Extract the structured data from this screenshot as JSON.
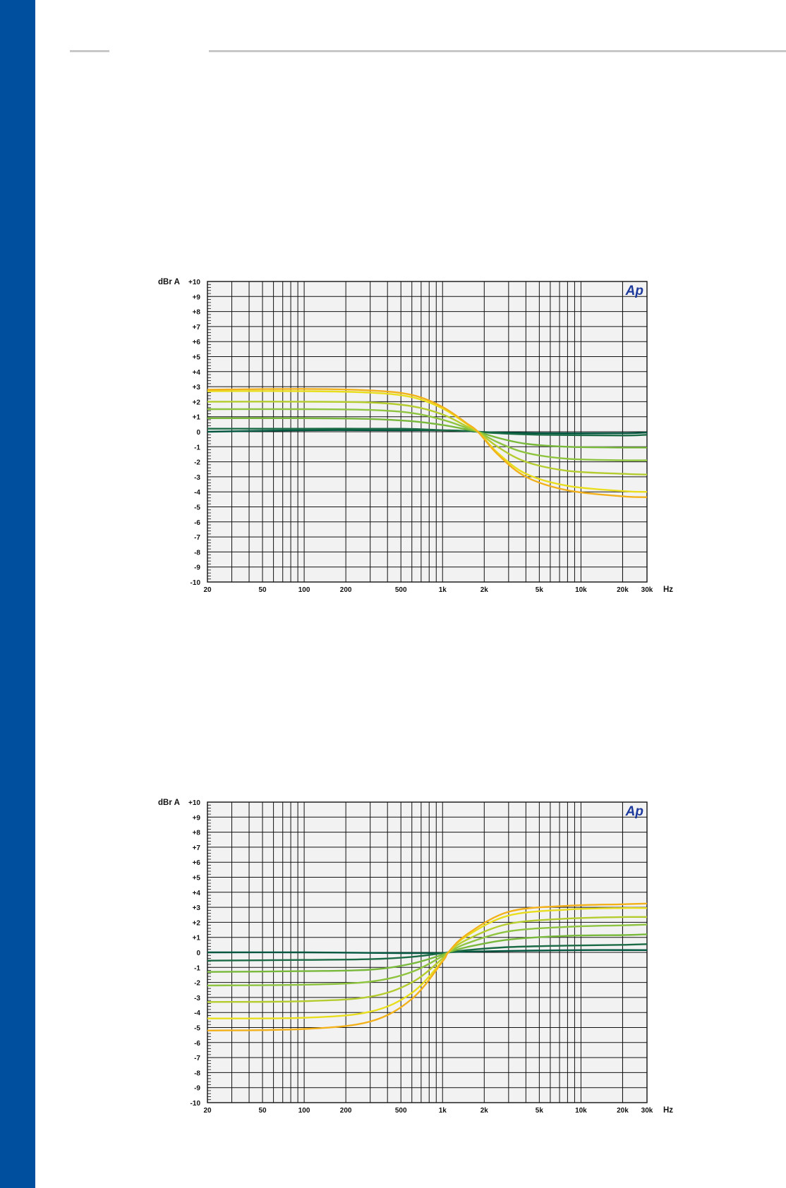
{
  "page": {
    "accent_color": "#004f9e",
    "rule_color": "#c8c8c8"
  },
  "chart_data": [
    {
      "type": "line",
      "ylabel": "dBr A",
      "xlabel": "Hz",
      "logo": "Ap",
      "x_scale": "log",
      "xlim": [
        20,
        30000
      ],
      "ylim": [
        -10,
        10
      ],
      "grid": true,
      "x_ticks": [
        20,
        50,
        100,
        200,
        500,
        1000,
        2000,
        5000,
        10000,
        20000,
        30000
      ],
      "x_tick_labels": [
        "20",
        "50",
        "100",
        "200",
        "500",
        "1k",
        "2k",
        "5k",
        "10k",
        "20k",
        "30k"
      ],
      "y_ticks": [
        10,
        9,
        8,
        7,
        6,
        5,
        4,
        3,
        2,
        1,
        0,
        -1,
        -2,
        -3,
        -4,
        -5,
        -6,
        -7,
        -8,
        -9,
        -10
      ],
      "y_tick_labels": [
        "+10",
        "+9",
        "+8",
        "+7",
        "+6",
        "+5",
        "+4",
        "+3",
        "+2",
        "+1",
        "0",
        "-1",
        "-2",
        "-3",
        "-4",
        "-5",
        "-6",
        "-7",
        "-8",
        "-9",
        "-10"
      ],
      "series": [
        {
          "color": "#00563f",
          "x": [
            20,
            100,
            500,
            1000,
            1500,
            1800,
            2500,
            5000,
            20000,
            30000
          ],
          "y": [
            0.0,
            0.1,
            0.1,
            0.1,
            0.05,
            0.0,
            -0.05,
            -0.1,
            -0.1,
            -0.05
          ]
        },
        {
          "color": "#1a6b45",
          "x": [
            20,
            100,
            500,
            1000,
            1500,
            1800,
            2500,
            5000,
            20000,
            30000
          ],
          "y": [
            0.2,
            0.2,
            0.2,
            0.1,
            0.05,
            0.0,
            -0.1,
            -0.2,
            -0.25,
            -0.2
          ]
        },
        {
          "color": "#78b83a",
          "x": [
            20,
            100,
            300,
            600,
            1000,
            1500,
            1800,
            2500,
            4000,
            8000,
            20000,
            30000
          ],
          "y": [
            0.9,
            0.9,
            0.85,
            0.7,
            0.45,
            0.15,
            0.0,
            -0.4,
            -0.8,
            -1.0,
            -1.05,
            -1.05
          ]
        },
        {
          "color": "#8ec43f",
          "x": [
            20,
            100,
            300,
            600,
            1000,
            1500,
            1800,
            2500,
            4000,
            8000,
            20000,
            30000
          ],
          "y": [
            1.5,
            1.5,
            1.45,
            1.25,
            0.8,
            0.25,
            0.0,
            -0.7,
            -1.4,
            -1.8,
            -1.9,
            -1.9
          ]
        },
        {
          "color": "#b5cc2e",
          "x": [
            20,
            100,
            300,
            600,
            1000,
            1500,
            1800,
            2500,
            4000,
            8000,
            20000,
            30000
          ],
          "y": [
            2.0,
            2.0,
            1.95,
            1.7,
            1.15,
            0.35,
            0.0,
            -1.0,
            -2.0,
            -2.6,
            -2.8,
            -2.85
          ]
        },
        {
          "color": "#e8de1e",
          "x": [
            20,
            100,
            300,
            600,
            1000,
            1500,
            1800,
            2500,
            4000,
            8000,
            20000,
            30000
          ],
          "y": [
            2.7,
            2.7,
            2.6,
            2.3,
            1.55,
            0.5,
            0.0,
            -1.4,
            -2.8,
            -3.6,
            -3.95,
            -4.0
          ]
        },
        {
          "color": "#f2b11a",
          "x": [
            20,
            100,
            300,
            600,
            1000,
            1500,
            1800,
            2500,
            4000,
            8000,
            20000,
            30000
          ],
          "y": [
            2.8,
            2.85,
            2.75,
            2.45,
            1.65,
            0.55,
            0.0,
            -1.5,
            -3.0,
            -3.9,
            -4.3,
            -4.35
          ]
        }
      ]
    },
    {
      "type": "line",
      "ylabel": "dBr A",
      "xlabel": "Hz",
      "logo": "Ap",
      "x_scale": "log",
      "xlim": [
        20,
        30000
      ],
      "ylim": [
        -10,
        10
      ],
      "grid": true,
      "x_ticks": [
        20,
        50,
        100,
        200,
        500,
        1000,
        2000,
        5000,
        10000,
        20000,
        30000
      ],
      "x_tick_labels": [
        "20",
        "50",
        "100",
        "200",
        "500",
        "1k",
        "2k",
        "5k",
        "10k",
        "20k",
        "30k"
      ],
      "y_ticks": [
        10,
        9,
        8,
        7,
        6,
        5,
        4,
        3,
        2,
        1,
        0,
        -1,
        -2,
        -3,
        -4,
        -5,
        -6,
        -7,
        -8,
        -9,
        -10
      ],
      "y_tick_labels": [
        "+10",
        "+9",
        "+8",
        "+7",
        "+6",
        "+5",
        "+4",
        "+3",
        "+2",
        "+1",
        "0",
        "-1",
        "-2",
        "-3",
        "-4",
        "-5",
        "-6",
        "-7",
        "-8",
        "-9",
        "-10"
      ],
      "series": [
        {
          "color": "#00563f",
          "x": [
            20,
            100,
            500,
            1000,
            1100,
            1500,
            3000,
            10000,
            30000
          ],
          "y": [
            0.0,
            0.0,
            -0.05,
            -0.05,
            0.0,
            0.05,
            0.1,
            0.15,
            0.15
          ]
        },
        {
          "color": "#1a6b45",
          "x": [
            20,
            100,
            300,
            600,
            1000,
            1100,
            1500,
            3000,
            8000,
            20000,
            30000
          ],
          "y": [
            -0.55,
            -0.5,
            -0.45,
            -0.3,
            -0.05,
            0.0,
            0.15,
            0.35,
            0.45,
            0.5,
            0.55
          ]
        },
        {
          "color": "#78b83a",
          "x": [
            20,
            100,
            300,
            600,
            1000,
            1100,
            1500,
            3000,
            8000,
            20000,
            30000
          ],
          "y": [
            -1.3,
            -1.25,
            -1.15,
            -0.75,
            -0.15,
            0.0,
            0.35,
            0.85,
            1.1,
            1.15,
            1.2
          ]
        },
        {
          "color": "#8ec43f",
          "x": [
            20,
            100,
            300,
            600,
            1000,
            1100,
            1500,
            3000,
            8000,
            20000,
            30000
          ],
          "y": [
            -2.2,
            -2.15,
            -1.95,
            -1.3,
            -0.25,
            0.0,
            0.6,
            1.4,
            1.7,
            1.8,
            1.85
          ]
        },
        {
          "color": "#b5cc2e",
          "x": [
            20,
            100,
            300,
            600,
            1000,
            1100,
            1500,
            3000,
            8000,
            20000,
            30000
          ],
          "y": [
            -3.3,
            -3.25,
            -2.95,
            -2.0,
            -0.4,
            0.0,
            0.85,
            1.9,
            2.25,
            2.35,
            2.35
          ]
        },
        {
          "color": "#e8de1e",
          "x": [
            20,
            100,
            300,
            600,
            1000,
            1100,
            1500,
            3000,
            8000,
            20000,
            30000
          ],
          "y": [
            -4.4,
            -4.35,
            -3.95,
            -2.7,
            -0.55,
            0.0,
            1.1,
            2.45,
            2.85,
            2.95,
            2.95
          ]
        },
        {
          "color": "#f2b11a",
          "x": [
            20,
            100,
            300,
            600,
            1000,
            1100,
            1500,
            3000,
            8000,
            20000,
            30000
          ],
          "y": [
            -5.2,
            -5.1,
            -4.6,
            -3.1,
            -0.6,
            0.0,
            1.2,
            2.7,
            3.1,
            3.2,
            3.25
          ]
        }
      ]
    }
  ]
}
